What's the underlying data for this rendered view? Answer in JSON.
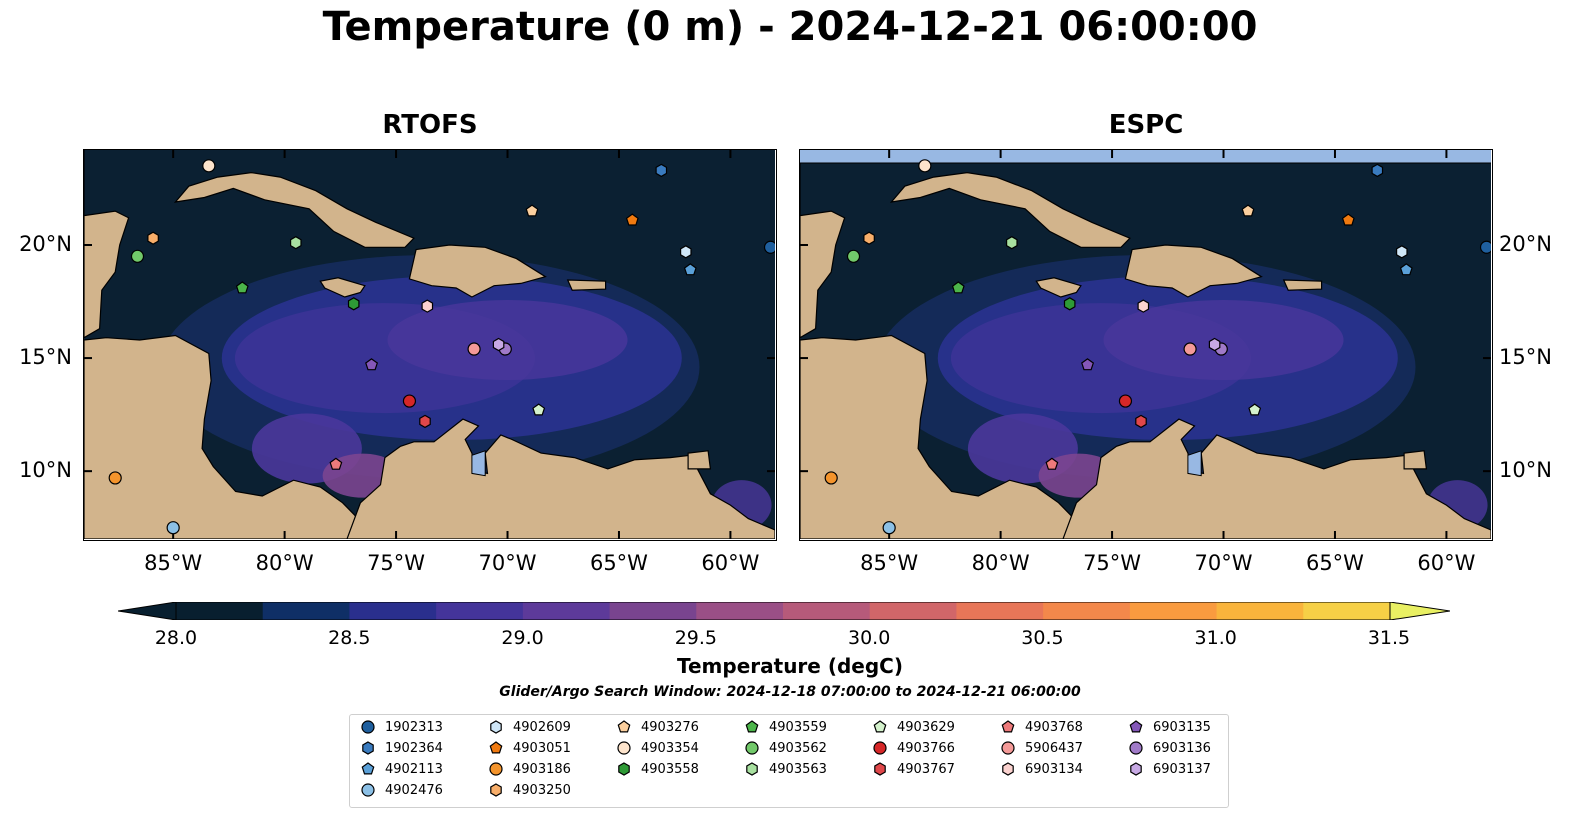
{
  "title": "Temperature (0 m) - 2024-12-21 06:00:00",
  "panels": [
    {
      "title": "RTOFS",
      "name": "rtofs"
    },
    {
      "title": "ESPC",
      "name": "espc"
    }
  ],
  "axes": {
    "lon_ticks": [
      "85°W",
      "80°W",
      "75°W",
      "70°W",
      "65°W",
      "60°W"
    ],
    "lon_values": [
      -85,
      -80,
      -75,
      -70,
      -65,
      -60
    ],
    "lat_ticks": [
      "20°N",
      "15°N",
      "10°N"
    ],
    "lat_values": [
      20,
      15,
      10
    ],
    "lon_range": [
      -89,
      -58
    ],
    "lat_range": [
      7,
      24.2
    ]
  },
  "colorbar": {
    "label": "Temperature (degC)",
    "ticks": [
      "28.0",
      "28.5",
      "29.0",
      "29.5",
      "30.0",
      "30.5",
      "31.0",
      "31.5"
    ],
    "range": [
      28.0,
      31.5
    ],
    "colors": [
      "#081f2f",
      "#0f2f66",
      "#2a2f8d",
      "#44349a",
      "#5d3a9a",
      "#79448f",
      "#9a4f86",
      "#b65a7a",
      "#d16669",
      "#e87658",
      "#f3884b",
      "#f99b3f",
      "#f9b43c",
      "#f6d046",
      "#e9f063"
    ],
    "extend": "both"
  },
  "search_window": "Glider/Argo Search Window: 2024-12-18 07:00:00 to 2024-12-21 06:00:00",
  "legend": [
    {
      "id": "1902313",
      "marker": "circle",
      "color": "#1f5f9e"
    },
    {
      "id": "1902364",
      "marker": "hexagon",
      "color": "#3a7bbf"
    },
    {
      "id": "4902113",
      "marker": "pentagon",
      "color": "#5aa0d8"
    },
    {
      "id": "4902476",
      "marker": "circle",
      "color": "#8cc0e6"
    },
    {
      "id": "4902609",
      "marker": "hexagon",
      "color": "#cfe6f7"
    },
    {
      "id": "4903051",
      "marker": "pentagon",
      "color": "#f07a10"
    },
    {
      "id": "4903186",
      "marker": "circle",
      "color": "#f4942c"
    },
    {
      "id": "4903250",
      "marker": "hexagon",
      "color": "#f8ae6a"
    },
    {
      "id": "4903276",
      "marker": "pentagon",
      "color": "#fbcf9e"
    },
    {
      "id": "4903354",
      "marker": "circle",
      "color": "#fde4cc"
    },
    {
      "id": "4903558",
      "marker": "hexagon",
      "color": "#2e9a36"
    },
    {
      "id": "4903559",
      "marker": "pentagon",
      "color": "#4cb54a"
    },
    {
      "id": "4903562",
      "marker": "circle",
      "color": "#72c96a"
    },
    {
      "id": "4903563",
      "marker": "hexagon",
      "color": "#a8e0a0"
    },
    {
      "id": "4903629",
      "marker": "pentagon",
      "color": "#d4f2cc"
    },
    {
      "id": "4903766",
      "marker": "circle",
      "color": "#d62728"
    },
    {
      "id": "4903767",
      "marker": "hexagon",
      "color": "#e0474a"
    },
    {
      "id": "4903768",
      "marker": "pentagon",
      "color": "#ee7a7b"
    },
    {
      "id": "5906437",
      "marker": "circle",
      "color": "#f49a98"
    },
    {
      "id": "6903134",
      "marker": "hexagon",
      "color": "#fbd2cf"
    },
    {
      "id": "6903135",
      "marker": "pentagon",
      "color": "#8457b8"
    },
    {
      "id": "6903136",
      "marker": "circle",
      "color": "#a07ac8"
    },
    {
      "id": "6903137",
      "marker": "hexagon",
      "color": "#c7a9e4"
    }
  ],
  "floats": [
    {
      "id": "1902313",
      "lon": -58.2,
      "lat": 19.9
    },
    {
      "id": "1902364",
      "lon": -63.1,
      "lat": 23.3
    },
    {
      "id": "4902113",
      "lon": -61.8,
      "lat": 18.9
    },
    {
      "id": "4902476",
      "lon": -85.0,
      "lat": 7.5
    },
    {
      "id": "4902609",
      "lon": -62.0,
      "lat": 19.7
    },
    {
      "id": "4903051",
      "lon": -64.4,
      "lat": 21.1
    },
    {
      "id": "4903186",
      "lon": -87.6,
      "lat": 9.7
    },
    {
      "id": "4903250",
      "lon": -85.9,
      "lat": 20.3
    },
    {
      "id": "4903276",
      "lon": -68.9,
      "lat": 21.5
    },
    {
      "id": "4903354",
      "lon": -83.4,
      "lat": 23.5
    },
    {
      "id": "4903558",
      "lon": -76.9,
      "lat": 17.4
    },
    {
      "id": "4903559",
      "lon": -81.9,
      "lat": 18.1
    },
    {
      "id": "4903562",
      "lon": -86.6,
      "lat": 19.5
    },
    {
      "id": "4903563",
      "lon": -79.5,
      "lat": 20.1
    },
    {
      "id": "4903629",
      "lon": -68.6,
      "lat": 12.7
    },
    {
      "id": "4903766",
      "lon": -74.4,
      "lat": 13.1
    },
    {
      "id": "4903767",
      "lon": -73.7,
      "lat": 12.2
    },
    {
      "id": "4903768",
      "lon": -77.7,
      "lat": 10.3
    },
    {
      "id": "5906437",
      "lon": -71.5,
      "lat": 15.4
    },
    {
      "id": "6903134",
      "lon": -73.6,
      "lat": 17.3
    },
    {
      "id": "6903135",
      "lon": -76.1,
      "lat": 14.7
    },
    {
      "id": "6903136",
      "lon": -70.1,
      "lat": 15.4
    },
    {
      "id": "6903137",
      "lon": -70.4,
      "lat": 15.6
    }
  ]
}
